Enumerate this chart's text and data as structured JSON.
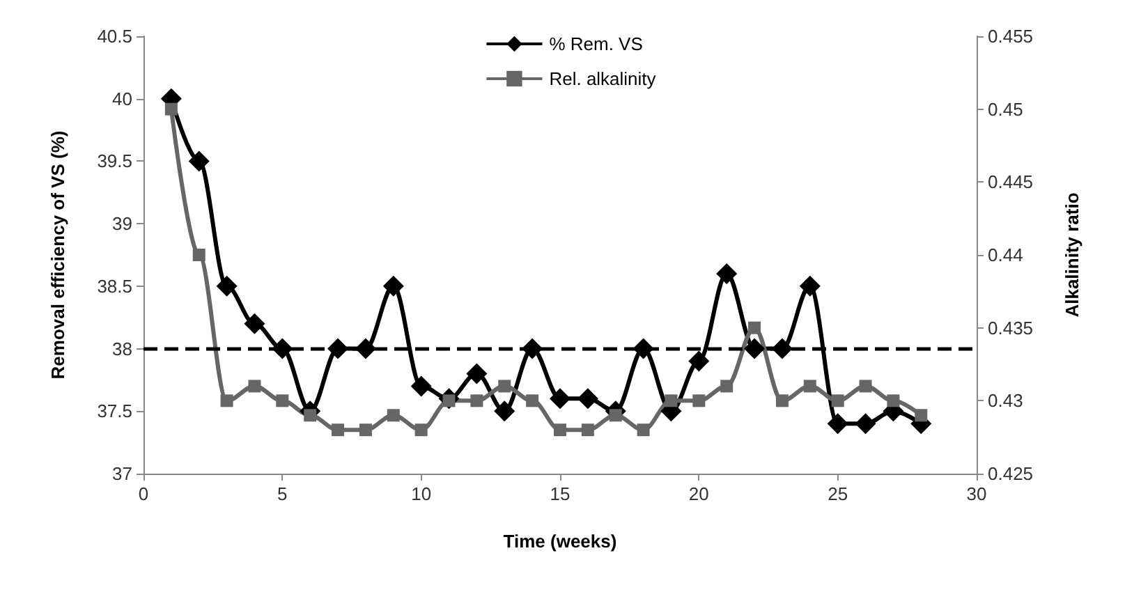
{
  "chart_data": {
    "type": "line",
    "xlabel": "Time (weeks)",
    "ylabel": "Removal efficiency of VS (%)",
    "y2label": "Alkalinity ratio",
    "x": [
      1,
      2,
      3,
      4,
      5,
      6,
      7,
      8,
      9,
      10,
      11,
      12,
      13,
      14,
      15,
      16,
      17,
      18,
      19,
      20,
      21,
      22,
      23,
      24,
      25,
      26,
      27,
      28
    ],
    "series": [
      {
        "name": "% Rem. VS",
        "color": "#000000",
        "marker": "diamond",
        "values": [
          40,
          39.5,
          38.5,
          38.2,
          38,
          37.5,
          38,
          38,
          38.5,
          37.7,
          37.6,
          37.8,
          37.5,
          38,
          37.6,
          37.6,
          37.5,
          38,
          37.5,
          37.9,
          38.6,
          38,
          38,
          38.5,
          37.4,
          37.4,
          37.5,
          37.4
        ]
      },
      {
        "name": "Rel. alkalinity",
        "color": "#666666",
        "marker": "square",
        "axis": "y2",
        "values": [
          0.45,
          0.44,
          0.43,
          0.431,
          0.43,
          0.429,
          0.428,
          0.428,
          0.429,
          0.428,
          0.43,
          0.43,
          0.431,
          0.43,
          0.428,
          0.428,
          0.429,
          0.428,
          0.43,
          0.43,
          0.431,
          0.435,
          0.43,
          0.431,
          0.43,
          0.431,
          0.43,
          0.429
        ]
      }
    ],
    "xlim": [
      0,
      30
    ],
    "xticks": [
      0,
      5,
      10,
      15,
      20,
      25,
      30
    ],
    "ylim": [
      37,
      40.5
    ],
    "yticks": [
      37,
      37.5,
      38,
      38.5,
      39,
      39.5,
      40,
      40.5
    ],
    "y2lim": [
      0.425,
      0.455
    ],
    "y2ticks": [
      0.425,
      0.43,
      0.435,
      0.44,
      0.445,
      0.45,
      0.455
    ],
    "ref_lines": [
      {
        "axis": "y",
        "value": 38,
        "color": "#000000",
        "line_style": "dashed"
      }
    ],
    "grid": false,
    "legend": "top",
    "line_style": "solid"
  }
}
